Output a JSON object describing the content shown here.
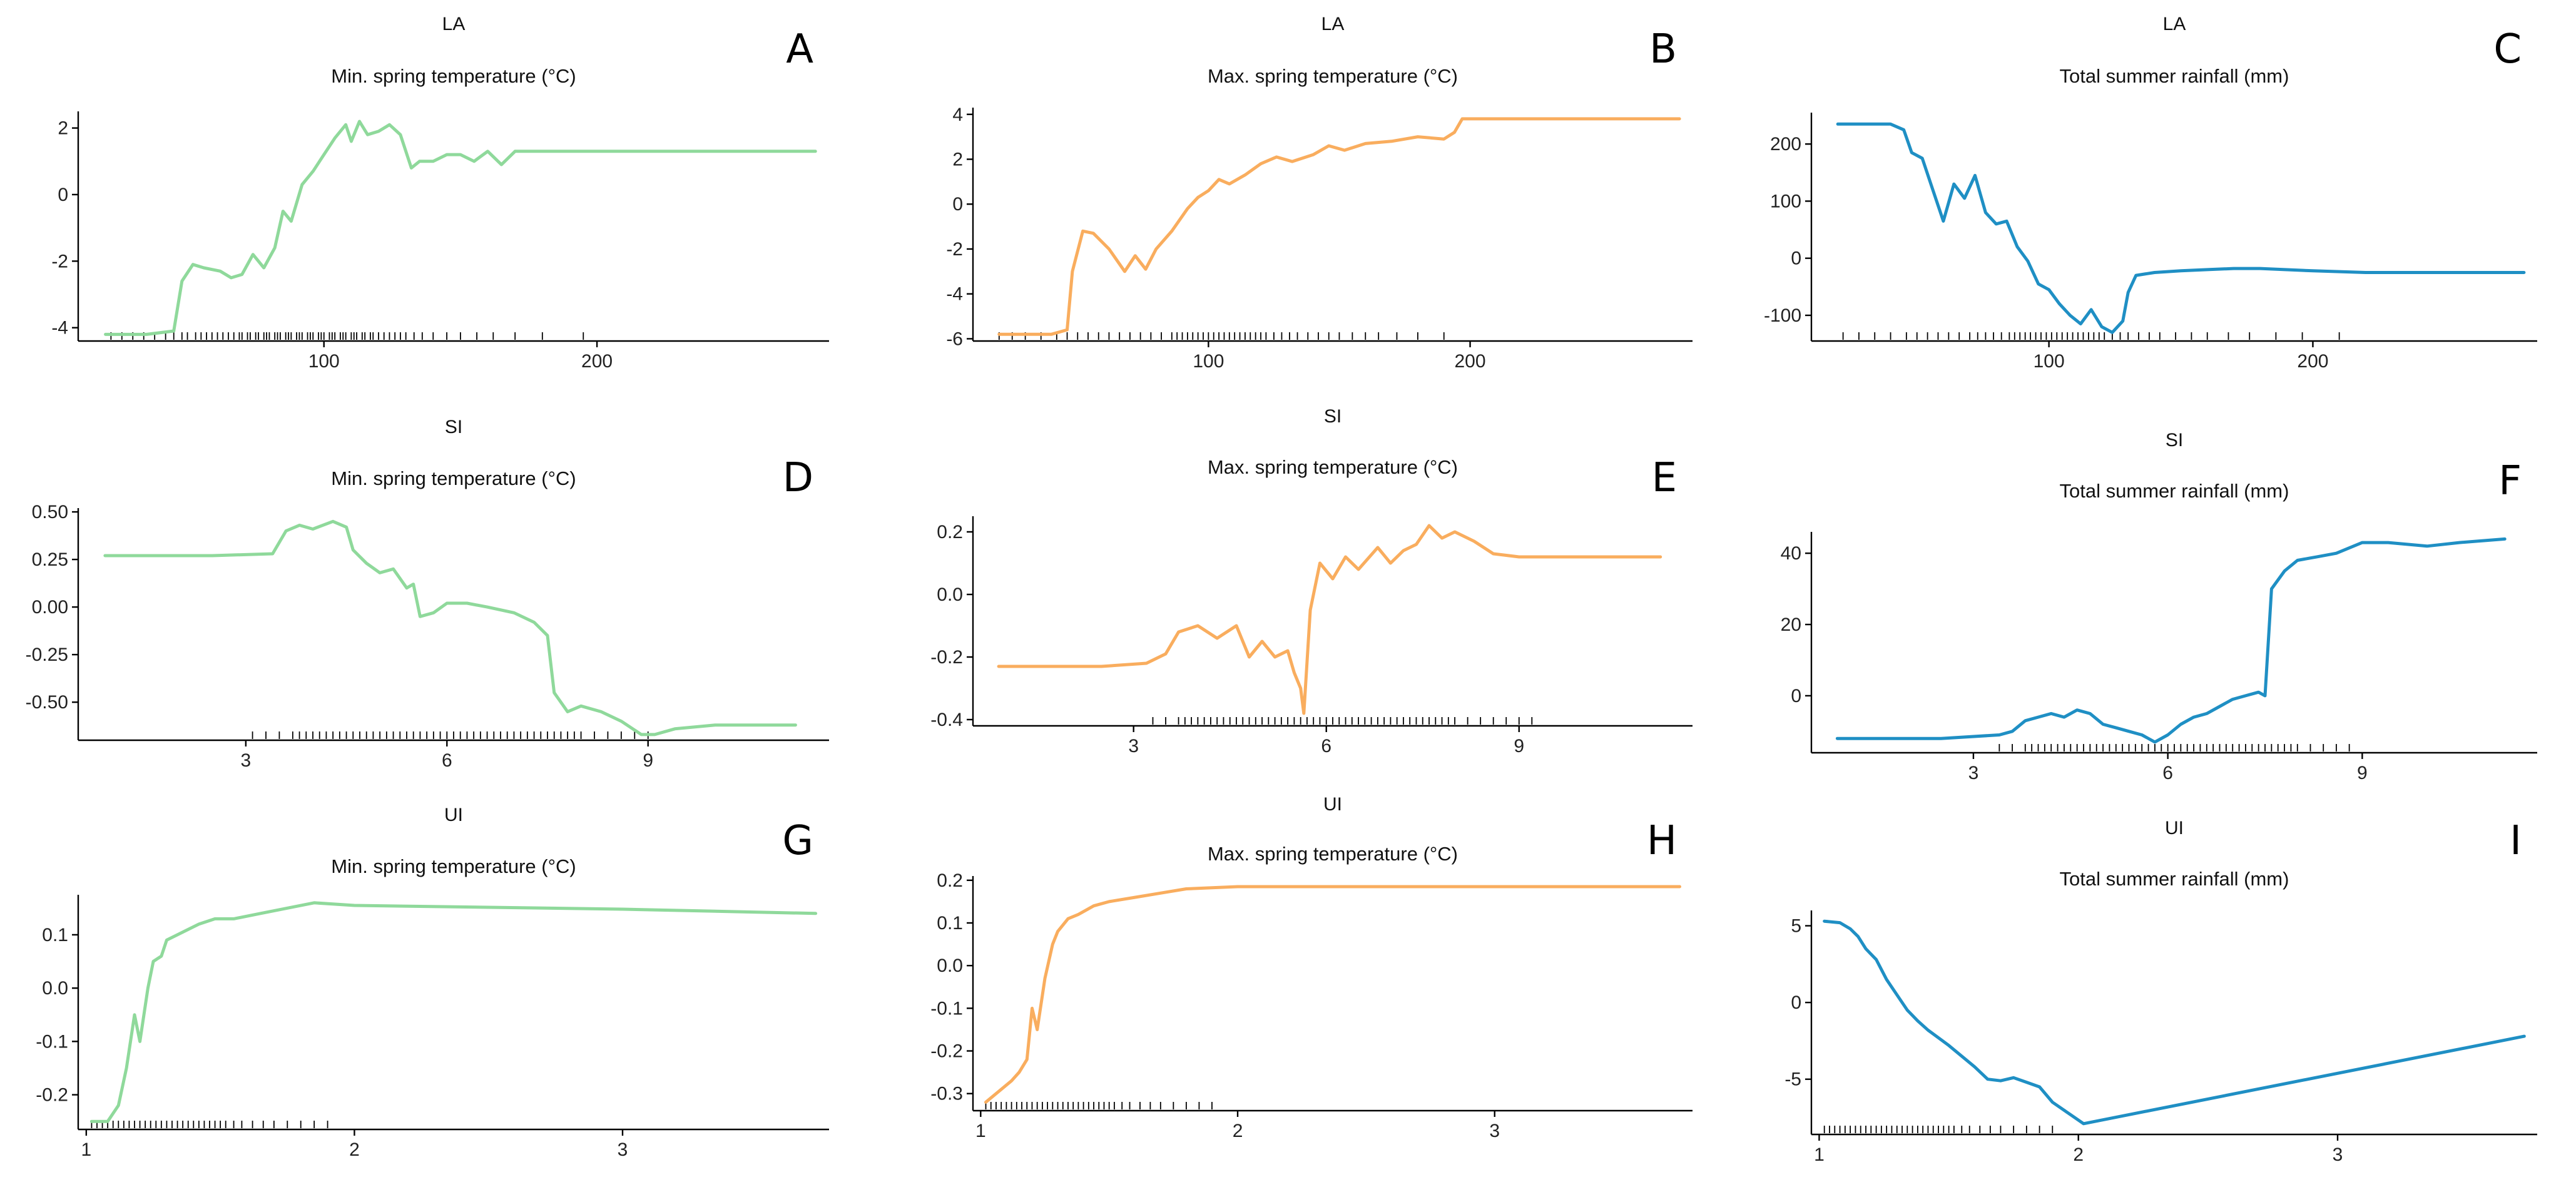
{
  "colors": {
    "min_temp": "#8fd99b",
    "max_temp": "#f9ad5e",
    "rainfall": "#1f8fc4",
    "axis": "#000000"
  },
  "chart_data": [
    {
      "id": "A",
      "type": "line",
      "letter": "A",
      "title": "LA",
      "subtitle": "Min. spring temperature (°C)",
      "xlabel": "",
      "ylabel": "",
      "color_key": "min_temp",
      "xlim": [
        10,
        285
      ],
      "ylim": [
        -4.4,
        2.5
      ],
      "xticks": [
        100,
        200
      ],
      "yticks": [
        -4,
        -2,
        0,
        2
      ],
      "x": [
        20,
        35,
        45,
        48,
        52,
        56,
        62,
        66,
        70,
        74,
        78,
        82,
        85,
        88,
        92,
        96,
        100,
        104,
        108,
        110,
        113,
        116,
        120,
        124,
        128,
        132,
        135,
        140,
        145,
        150,
        155,
        160,
        165,
        170,
        180,
        195,
        215,
        240,
        280
      ],
      "y": [
        -4.2,
        -4.2,
        -4.1,
        -2.6,
        -2.1,
        -2.2,
        -2.3,
        -2.5,
        -2.4,
        -1.8,
        -2.2,
        -1.6,
        -0.5,
        -0.8,
        0.3,
        0.7,
        1.2,
        1.7,
        2.1,
        1.6,
        2.2,
        1.8,
        1.9,
        2.1,
        1.8,
        0.8,
        1.0,
        1.0,
        1.2,
        1.2,
        1.0,
        1.3,
        0.9,
        1.3,
        1.3,
        1.3,
        1.3,
        1.3,
        1.3
      ],
      "rug": [
        22,
        26,
        30,
        34,
        38,
        42,
        45,
        48,
        50,
        53,
        55,
        57,
        59,
        61,
        63,
        65,
        67,
        69,
        70,
        72,
        73,
        75,
        76,
        78,
        79,
        80,
        82,
        83,
        84,
        86,
        87,
        88,
        90,
        91,
        92,
        94,
        95,
        96,
        98,
        99,
        100,
        102,
        103,
        104,
        106,
        107,
        108,
        110,
        111,
        112,
        114,
        115,
        117,
        118,
        120,
        122,
        124,
        126,
        128,
        130,
        133,
        136,
        140,
        145,
        150,
        156,
        162,
        170,
        180,
        195
      ]
    },
    {
      "id": "B",
      "type": "line",
      "letter": "B",
      "title": "LA",
      "subtitle": "Max. spring temperature (°C)",
      "xlabel": "",
      "ylabel": "",
      "color_key": "max_temp",
      "xlim": [
        10,
        285
      ],
      "ylim": [
        -6.1,
        4.3
      ],
      "xticks": [
        100,
        200
      ],
      "yticks": [
        -6,
        -4,
        -2,
        0,
        2,
        4
      ],
      "x": [
        20,
        40,
        46,
        48,
        52,
        56,
        62,
        68,
        72,
        76,
        80,
        86,
        92,
        96,
        100,
        104,
        108,
        114,
        120,
        126,
        132,
        140,
        146,
        152,
        160,
        170,
        180,
        190,
        194,
        197,
        210,
        240,
        280
      ],
      "y": [
        -5.8,
        -5.8,
        -5.6,
        -3.0,
        -1.2,
        -1.3,
        -2.0,
        -3.0,
        -2.3,
        -2.9,
        -2.0,
        -1.2,
        -0.2,
        0.3,
        0.6,
        1.1,
        0.9,
        1.3,
        1.8,
        2.1,
        1.9,
        2.2,
        2.6,
        2.4,
        2.7,
        2.8,
        3.0,
        2.9,
        3.2,
        3.8,
        3.8,
        3.8,
        3.8
      ],
      "rug": [
        20,
        25,
        30,
        36,
        42,
        46,
        50,
        54,
        58,
        62,
        66,
        70,
        74,
        78,
        82,
        86,
        88,
        90,
        92,
        94,
        96,
        98,
        100,
        102,
        104,
        106,
        108,
        110,
        112,
        114,
        116,
        118,
        120,
        122,
        125,
        128,
        131,
        134,
        138,
        142,
        146,
        150,
        155,
        160,
        165,
        172,
        180,
        190
      ]
    },
    {
      "id": "C",
      "type": "line",
      "letter": "C",
      "title": "LA",
      "subtitle": "Total summer rainfall (mm)",
      "xlabel": "",
      "ylabel": "",
      "color_key": "rainfall",
      "xlim": [
        10,
        285
      ],
      "ylim": [
        -145,
        255
      ],
      "xticks": [
        100,
        200
      ],
      "yticks": [
        -100,
        0,
        100,
        200
      ],
      "x": [
        20,
        40,
        45,
        48,
        52,
        56,
        60,
        64,
        68,
        72,
        76,
        80,
        84,
        88,
        92,
        96,
        100,
        104,
        108,
        112,
        116,
        120,
        124,
        128,
        130,
        133,
        140,
        150,
        160,
        170,
        180,
        200,
        220,
        250,
        280
      ],
      "y": [
        235,
        235,
        225,
        185,
        175,
        120,
        65,
        130,
        105,
        145,
        80,
        60,
        65,
        20,
        -5,
        -45,
        -55,
        -80,
        -100,
        -115,
        -90,
        -120,
        -130,
        -110,
        -60,
        -30,
        -25,
        -22,
        -20,
        -18,
        -18,
        -22,
        -25,
        -25,
        -25
      ],
      "rug": [
        22,
        28,
        34,
        40,
        46,
        50,
        54,
        58,
        62,
        66,
        70,
        73,
        76,
        79,
        82,
        85,
        87,
        89,
        91,
        93,
        95,
        97,
        99,
        101,
        103,
        105,
        107,
        109,
        111,
        113,
        115,
        117,
        119,
        121,
        124,
        127,
        130,
        134,
        138,
        142,
        148,
        154,
        160,
        168,
        176,
        186,
        196,
        210
      ]
    },
    {
      "id": "D",
      "type": "line",
      "letter": "D",
      "title": "SI",
      "subtitle": "Min. spring temperature (°C)",
      "xlabel": "",
      "ylabel": "",
      "color_key": "min_temp",
      "xlim": [
        0.5,
        11.7
      ],
      "ylim": [
        -0.7,
        0.52
      ],
      "xticks": [
        3,
        6,
        9
      ],
      "yticks": [
        -0.5,
        -0.25,
        0.0,
        0.25,
        0.5
      ],
      "x": [
        0.9,
        2.5,
        3.4,
        3.6,
        3.8,
        4.0,
        4.3,
        4.5,
        4.6,
        4.8,
        5.0,
        5.2,
        5.4,
        5.5,
        5.6,
        5.8,
        6.0,
        6.3,
        6.6,
        7.0,
        7.3,
        7.5,
        7.6,
        7.8,
        8.0,
        8.3,
        8.6,
        8.9,
        9.1,
        9.4,
        10.0,
        11.2
      ],
      "y": [
        0.27,
        0.27,
        0.28,
        0.4,
        0.43,
        0.41,
        0.45,
        0.42,
        0.3,
        0.23,
        0.18,
        0.2,
        0.1,
        0.12,
        -0.05,
        -0.03,
        0.02,
        0.02,
        0.0,
        -0.03,
        -0.08,
        -0.15,
        -0.45,
        -0.55,
        -0.52,
        -0.55,
        -0.6,
        -0.67,
        -0.67,
        -0.64,
        -0.62,
        -0.62
      ],
      "rug": [
        3.1,
        3.3,
        3.5,
        3.7,
        3.8,
        3.9,
        4.0,
        4.1,
        4.2,
        4.3,
        4.4,
        4.5,
        4.6,
        4.7,
        4.8,
        4.9,
        5.0,
        5.1,
        5.2,
        5.3,
        5.4,
        5.5,
        5.6,
        5.7,
        5.8,
        5.9,
        6.0,
        6.1,
        6.2,
        6.3,
        6.4,
        6.5,
        6.6,
        6.7,
        6.8,
        6.9,
        7.0,
        7.1,
        7.2,
        7.3,
        7.4,
        7.5,
        7.6,
        7.7,
        7.8,
        7.9,
        8.0,
        8.2,
        8.4,
        8.6,
        8.8,
        9.0
      ]
    },
    {
      "id": "E",
      "type": "line",
      "letter": "E",
      "title": "SI",
      "subtitle": "Max. spring temperature (°C)",
      "xlabel": "",
      "ylabel": "",
      "color_key": "max_temp",
      "xlim": [
        0.5,
        11.7
      ],
      "ylim": [
        -0.42,
        0.25
      ],
      "xticks": [
        3,
        6,
        9
      ],
      "yticks": [
        -0.4,
        -0.2,
        0.0,
        0.2
      ],
      "x": [
        0.9,
        2.5,
        3.2,
        3.5,
        3.7,
        4.0,
        4.3,
        4.6,
        4.8,
        5.0,
        5.2,
        5.4,
        5.5,
        5.6,
        5.65,
        5.75,
        5.9,
        6.1,
        6.3,
        6.5,
        6.8,
        7.0,
        7.2,
        7.4,
        7.6,
        7.8,
        8.0,
        8.3,
        8.6,
        9.0,
        10.0,
        11.2
      ],
      "y": [
        -0.23,
        -0.23,
        -0.22,
        -0.19,
        -0.12,
        -0.1,
        -0.14,
        -0.1,
        -0.2,
        -0.15,
        -0.2,
        -0.18,
        -0.25,
        -0.3,
        -0.38,
        -0.05,
        0.1,
        0.05,
        0.12,
        0.08,
        0.15,
        0.1,
        0.14,
        0.16,
        0.22,
        0.18,
        0.2,
        0.17,
        0.13,
        0.12,
        0.12,
        0.12
      ],
      "rug": [
        3.3,
        3.5,
        3.7,
        3.8,
        3.9,
        4.0,
        4.1,
        4.2,
        4.3,
        4.4,
        4.5,
        4.6,
        4.7,
        4.8,
        4.9,
        5.0,
        5.1,
        5.2,
        5.3,
        5.4,
        5.5,
        5.6,
        5.7,
        5.8,
        5.9,
        6.0,
        6.1,
        6.2,
        6.3,
        6.4,
        6.5,
        6.6,
        6.7,
        6.8,
        6.9,
        7.0,
        7.1,
        7.2,
        7.3,
        7.4,
        7.5,
        7.6,
        7.7,
        7.8,
        7.9,
        8.0,
        8.2,
        8.4,
        8.6,
        8.8,
        9.0,
        9.2
      ]
    },
    {
      "id": "F",
      "type": "line",
      "letter": "F",
      "title": "SI",
      "subtitle": "Total summer rainfall (mm)",
      "xlabel": "",
      "ylabel": "",
      "color_key": "rainfall",
      "xlim": [
        0.5,
        11.7
      ],
      "ylim": [
        -16,
        46
      ],
      "xticks": [
        3,
        6,
        9
      ],
      "yticks": [
        0,
        20,
        40
      ],
      "x": [
        0.9,
        2.5,
        3.4,
        3.6,
        3.8,
        4.0,
        4.2,
        4.4,
        4.6,
        4.8,
        5.0,
        5.2,
        5.4,
        5.6,
        5.8,
        6.0,
        6.2,
        6.4,
        6.6,
        6.8,
        7.0,
        7.2,
        7.4,
        7.5,
        7.6,
        7.8,
        8.0,
        8.3,
        8.6,
        9.0,
        9.4,
        10.0,
        10.5,
        11.2
      ],
      "y": [
        -12,
        -12,
        -11,
        -10,
        -7,
        -6,
        -5,
        -6,
        -4,
        -5,
        -8,
        -9,
        -10,
        -11,
        -13,
        -11,
        -8,
        -6,
        -5,
        -3,
        -1,
        0,
        1,
        0,
        30,
        35,
        38,
        39,
        40,
        43,
        43,
        42,
        43,
        44
      ],
      "rug": [
        3.4,
        3.6,
        3.8,
        3.9,
        4.0,
        4.1,
        4.2,
        4.3,
        4.4,
        4.5,
        4.6,
        4.7,
        4.8,
        4.9,
        5.0,
        5.1,
        5.2,
        5.3,
        5.4,
        5.5,
        5.6,
        5.7,
        5.8,
        5.9,
        6.0,
        6.1,
        6.2,
        6.3,
        6.4,
        6.5,
        6.6,
        6.7,
        6.8,
        6.9,
        7.0,
        7.1,
        7.2,
        7.3,
        7.4,
        7.5,
        7.6,
        7.7,
        7.8,
        7.9,
        8.0,
        8.2,
        8.4,
        8.6,
        8.8
      ]
    },
    {
      "id": "G",
      "type": "line",
      "letter": "G",
      "title": "UI",
      "subtitle": "Min. spring temperature (°C)",
      "xlabel": "",
      "ylabel": "",
      "color_key": "min_temp",
      "xlim": [
        0.97,
        3.77
      ],
      "ylim": [
        -0.265,
        0.175
      ],
      "xticks": [
        1,
        2,
        3
      ],
      "yticks": [
        -0.2,
        -0.1,
        0.0,
        0.1
      ],
      "x": [
        1.02,
        1.08,
        1.12,
        1.15,
        1.18,
        1.2,
        1.23,
        1.25,
        1.28,
        1.3,
        1.34,
        1.38,
        1.42,
        1.48,
        1.55,
        1.65,
        1.75,
        1.85,
        2.0,
        3.0,
        3.72
      ],
      "y": [
        -0.25,
        -0.25,
        -0.22,
        -0.15,
        -0.05,
        -0.1,
        0.0,
        0.05,
        0.06,
        0.09,
        0.1,
        0.11,
        0.12,
        0.13,
        0.13,
        0.14,
        0.15,
        0.16,
        0.155,
        0.148,
        0.14
      ],
      "rug": [
        1.02,
        1.04,
        1.06,
        1.08,
        1.1,
        1.12,
        1.14,
        1.16,
        1.18,
        1.2,
        1.22,
        1.24,
        1.26,
        1.28,
        1.3,
        1.32,
        1.34,
        1.36,
        1.38,
        1.4,
        1.42,
        1.44,
        1.46,
        1.48,
        1.5,
        1.52,
        1.55,
        1.58,
        1.62,
        1.66,
        1.7,
        1.75,
        1.8,
        1.85,
        1.9
      ]
    },
    {
      "id": "H",
      "type": "line",
      "letter": "H",
      "title": "UI",
      "subtitle": "Max. spring temperature (°C)",
      "xlabel": "",
      "ylabel": "",
      "color_key": "max_temp",
      "xlim": [
        0.97,
        3.77
      ],
      "ylim": [
        -0.34,
        0.21
      ],
      "xticks": [
        1,
        2,
        3
      ],
      "yticks": [
        -0.3,
        -0.2,
        -0.1,
        0.0,
        0.1,
        0.2
      ],
      "x": [
        1.02,
        1.08,
        1.12,
        1.15,
        1.18,
        1.2,
        1.22,
        1.25,
        1.28,
        1.3,
        1.34,
        1.38,
        1.44,
        1.5,
        1.6,
        1.7,
        1.8,
        2.0,
        2.5,
        3.72
      ],
      "y": [
        -0.32,
        -0.29,
        -0.27,
        -0.25,
        -0.22,
        -0.1,
        -0.15,
        -0.03,
        0.05,
        0.08,
        0.11,
        0.12,
        0.14,
        0.15,
        0.16,
        0.17,
        0.18,
        0.185,
        0.185,
        0.185
      ],
      "rug": [
        1.02,
        1.04,
        1.06,
        1.08,
        1.1,
        1.12,
        1.14,
        1.16,
        1.18,
        1.2,
        1.22,
        1.24,
        1.26,
        1.28,
        1.3,
        1.32,
        1.34,
        1.36,
        1.38,
        1.4,
        1.42,
        1.44,
        1.46,
        1.48,
        1.5,
        1.52,
        1.55,
        1.58,
        1.62,
        1.66,
        1.7,
        1.75,
        1.8,
        1.85,
        1.9
      ]
    },
    {
      "id": "I",
      "type": "line",
      "letter": "I",
      "title": "UI",
      "subtitle": "Total summer rainfall (mm)",
      "xlabel": "",
      "ylabel": "",
      "color_key": "rainfall",
      "xlim": [
        0.97,
        3.77
      ],
      "ylim": [
        -8.6,
        6.0
      ],
      "xticks": [
        1,
        2,
        3
      ],
      "yticks": [
        -5,
        0,
        5
      ],
      "x": [
        1.02,
        1.08,
        1.12,
        1.15,
        1.18,
        1.22,
        1.26,
        1.3,
        1.34,
        1.38,
        1.42,
        1.46,
        1.5,
        1.55,
        1.6,
        1.65,
        1.7,
        1.75,
        1.8,
        1.85,
        1.9,
        2.02,
        3.72
      ],
      "y": [
        5.3,
        5.2,
        4.8,
        4.3,
        3.5,
        2.8,
        1.5,
        0.5,
        -0.5,
        -1.2,
        -1.8,
        -2.3,
        -2.8,
        -3.5,
        -4.2,
        -5.0,
        -5.1,
        -4.9,
        -5.2,
        -5.5,
        -6.5,
        -7.9,
        -2.2
      ],
      "rug": [
        1.02,
        1.04,
        1.06,
        1.08,
        1.1,
        1.12,
        1.14,
        1.16,
        1.18,
        1.2,
        1.22,
        1.24,
        1.26,
        1.28,
        1.3,
        1.32,
        1.34,
        1.36,
        1.38,
        1.4,
        1.42,
        1.44,
        1.46,
        1.48,
        1.5,
        1.52,
        1.55,
        1.58,
        1.62,
        1.66,
        1.7,
        1.75,
        1.8,
        1.85,
        1.9
      ]
    }
  ]
}
